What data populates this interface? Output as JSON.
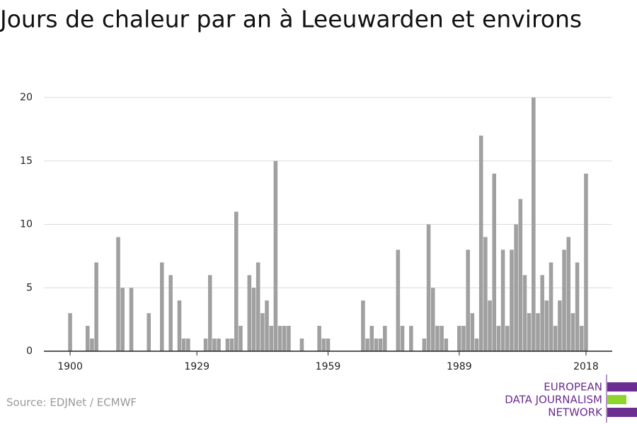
{
  "chart_data": {
    "type": "bar",
    "title": "Jours de chaleur par an à Leeuwarden et environs",
    "source": "Source: EDJNet / ECMWF",
    "color": "#a0a0a0",
    "x": [
      1900,
      1901,
      1902,
      1903,
      1904,
      1905,
      1906,
      1907,
      1908,
      1909,
      1910,
      1911,
      1912,
      1913,
      1914,
      1915,
      1916,
      1917,
      1918,
      1919,
      1920,
      1921,
      1922,
      1923,
      1924,
      1925,
      1926,
      1927,
      1928,
      1929,
      1930,
      1931,
      1932,
      1933,
      1934,
      1935,
      1936,
      1937,
      1938,
      1939,
      1940,
      1941,
      1942,
      1943,
      1944,
      1945,
      1946,
      1947,
      1948,
      1949,
      1950,
      1951,
      1952,
      1953,
      1954,
      1955,
      1956,
      1957,
      1958,
      1959,
      1960,
      1961,
      1962,
      1963,
      1964,
      1965,
      1966,
      1967,
      1968,
      1969,
      1970,
      1971,
      1972,
      1973,
      1974,
      1975,
      1976,
      1977,
      1978,
      1979,
      1980,
      1981,
      1982,
      1983,
      1984,
      1985,
      1986,
      1987,
      1988,
      1989,
      1990,
      1991,
      1992,
      1993,
      1994,
      1995,
      1996,
      1997,
      1998,
      1999,
      2000,
      2001,
      2002,
      2003,
      2004,
      2005,
      2006,
      2007,
      2008,
      2009,
      2010,
      2011,
      2012,
      2013,
      2014,
      2015,
      2016,
      2017,
      2018
    ],
    "values": [
      3,
      0,
      0,
      0,
      2,
      1,
      7,
      0,
      0,
      0,
      0,
      9,
      5,
      0,
      5,
      0,
      0,
      0,
      3,
      0,
      0,
      7,
      0,
      6,
      0,
      4,
      1,
      1,
      0,
      0,
      0,
      1,
      6,
      1,
      1,
      0,
      1,
      1,
      11,
      2,
      0,
      6,
      5,
      7,
      3,
      4,
      2,
      15,
      2,
      2,
      2,
      0,
      0,
      1,
      0,
      0,
      0,
      2,
      1,
      1,
      0,
      0,
      0,
      0,
      0,
      0,
      0,
      4,
      1,
      2,
      1,
      1,
      2,
      0,
      0,
      8,
      2,
      0,
      2,
      0,
      0,
      1,
      10,
      5,
      2,
      2,
      1,
      0,
      0,
      2,
      2,
      8,
      3,
      1,
      17,
      9,
      4,
      14,
      2,
      8,
      2,
      8,
      10,
      12,
      6,
      3,
      20,
      3,
      6,
      4,
      7,
      2,
      4,
      8,
      9,
      3,
      7,
      2,
      14
    ],
    "xlim": [
      1894,
      2024
    ],
    "xticks": [
      1900,
      1929,
      1959,
      1989,
      2018
    ],
    "ylim": [
      0,
      20
    ],
    "yticks": [
      0,
      5,
      10,
      15,
      20
    ],
    "grid": true
  },
  "logo": [
    "EUROPEAN",
    "DATA JOURNALISM",
    "NETWORK"
  ]
}
